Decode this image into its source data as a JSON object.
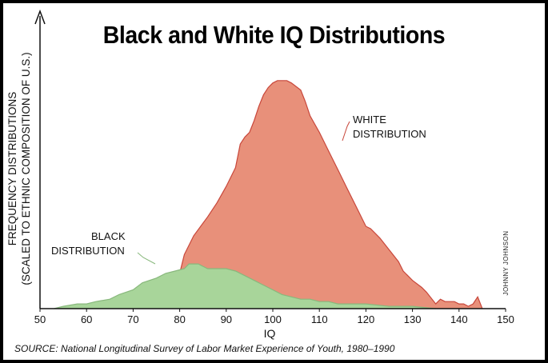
{
  "chart_data": {
    "type": "area",
    "title": "Black and White IQ Distributions",
    "xlabel": "IQ",
    "ylabel_lines": [
      "FREQUENCY DISTRIBUTIONS",
      "(SCALED TO ETHNIC COMPOSITION OF U.S.)"
    ],
    "xlim": [
      50,
      150
    ],
    "ylim": [
      0,
      100
    ],
    "xticks": [
      50,
      60,
      70,
      80,
      90,
      100,
      110,
      120,
      130,
      140,
      150
    ],
    "grid": false,
    "source": "SOURCE: National Longitudinal Survey of Labor Market Experience of Youth, 1980–1990",
    "credit": "JOHNNY JOHNSON",
    "series": [
      {
        "name": "WHITE DISTRIBUTION",
        "label_lines": [
          "WHITE",
          "DISTRIBUTION"
        ],
        "color": "#e8907a",
        "stroke": "#c8463a",
        "points": [
          [
            54,
            0
          ],
          [
            57,
            1
          ],
          [
            60,
            1
          ],
          [
            63,
            2
          ],
          [
            66,
            3
          ],
          [
            69,
            5
          ],
          [
            72,
            7
          ],
          [
            75,
            10
          ],
          [
            78,
            12
          ],
          [
            80,
            15
          ],
          [
            81,
            23
          ],
          [
            83,
            31
          ],
          [
            86,
            39
          ],
          [
            88,
            45
          ],
          [
            90,
            52
          ],
          [
            92,
            60
          ],
          [
            93,
            70
          ],
          [
            94,
            73
          ],
          [
            95,
            75
          ],
          [
            96,
            80
          ],
          [
            97,
            86
          ],
          [
            98,
            91
          ],
          [
            99,
            94
          ],
          [
            100,
            96
          ],
          [
            101,
            97
          ],
          [
            103,
            97
          ],
          [
            104,
            96
          ],
          [
            106,
            93
          ],
          [
            107,
            88
          ],
          [
            108,
            82
          ],
          [
            110,
            75
          ],
          [
            112,
            67
          ],
          [
            114,
            59
          ],
          [
            116,
            51
          ],
          [
            118,
            43
          ],
          [
            120,
            35
          ],
          [
            121,
            34
          ],
          [
            123,
            30
          ],
          [
            125,
            25
          ],
          [
            127,
            20
          ],
          [
            128,
            16
          ],
          [
            130,
            12
          ],
          [
            132,
            9
          ],
          [
            133,
            7
          ],
          [
            135,
            2
          ],
          [
            136,
            4
          ],
          [
            137,
            3
          ],
          [
            139,
            3
          ],
          [
            140,
            2
          ],
          [
            141,
            2
          ],
          [
            142,
            1
          ],
          [
            143,
            2
          ],
          [
            144,
            5
          ],
          [
            145,
            0
          ]
        ]
      },
      {
        "name": "BLACK DISTRIBUTION",
        "label_lines": [
          "BLACK",
          "DISTRIBUTION"
        ],
        "color": "#a8d59a",
        "stroke": "#88b87c",
        "points": [
          [
            53,
            0
          ],
          [
            55,
            1
          ],
          [
            58,
            2
          ],
          [
            60,
            2
          ],
          [
            62,
            3
          ],
          [
            65,
            4
          ],
          [
            67,
            6
          ],
          [
            70,
            8
          ],
          [
            72,
            11
          ],
          [
            75,
            13
          ],
          [
            77,
            15
          ],
          [
            79,
            16
          ],
          [
            81,
            17
          ],
          [
            82,
            19
          ],
          [
            84,
            19
          ],
          [
            85,
            18
          ],
          [
            86,
            17
          ],
          [
            88,
            17
          ],
          [
            90,
            17
          ],
          [
            92,
            16
          ],
          [
            94,
            14
          ],
          [
            96,
            12
          ],
          [
            98,
            10
          ],
          [
            100,
            8
          ],
          [
            102,
            6
          ],
          [
            104,
            5
          ],
          [
            106,
            4
          ],
          [
            108,
            4
          ],
          [
            110,
            3
          ],
          [
            112,
            3
          ],
          [
            114,
            2
          ],
          [
            116,
            2
          ],
          [
            120,
            2
          ],
          [
            125,
            1
          ],
          [
            130,
            1
          ],
          [
            135,
            0
          ]
        ]
      }
    ]
  }
}
